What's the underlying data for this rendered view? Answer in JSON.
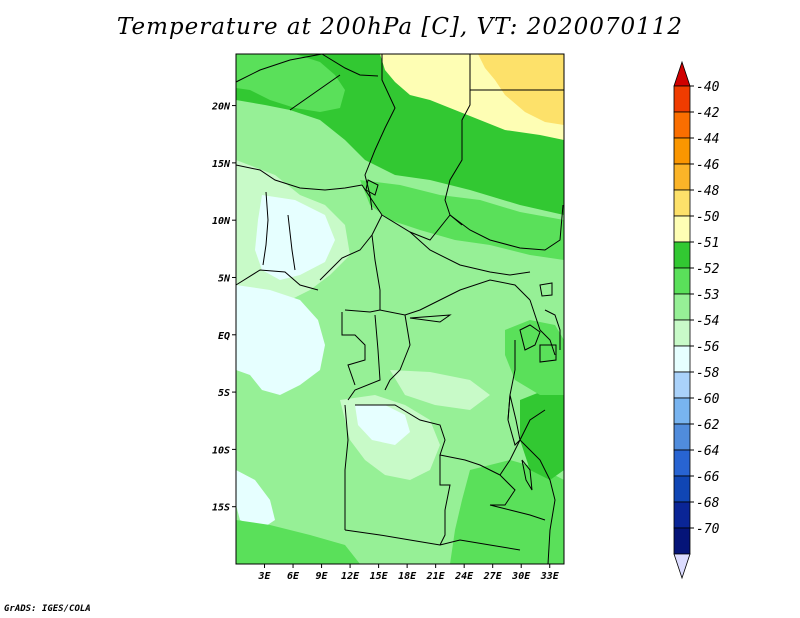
{
  "title": "Temperature at 200hPa [C], VT: 2020070112",
  "credit": "GrADS: IGES/COLA",
  "map": {
    "lon_range": [
      0,
      34.5
    ],
    "lat_range": [
      -20,
      24.5
    ],
    "x_ticks": [
      "3E",
      "6E",
      "9E",
      "12E",
      "15E",
      "18E",
      "21E",
      "24E",
      "27E",
      "30E",
      "33E"
    ],
    "y_ticks": [
      "20N",
      "15N",
      "10N",
      "5N",
      "EQ",
      "5S",
      "10S",
      "15S"
    ]
  },
  "colorbar": {
    "labels": [
      "-40",
      "-42",
      "-44",
      "-46",
      "-48",
      "-50",
      "-51",
      "-52",
      "-53",
      "-54",
      "-56",
      "-58",
      "-60",
      "-62",
      "-64",
      "-66",
      "-68",
      "-70"
    ],
    "colors": [
      "#d00000",
      "#f03c00",
      "#fa6e00",
      "#fa9600",
      "#fbb428",
      "#fde16a",
      "#fefeb4",
      "#32c832",
      "#5ae05a",
      "#96f096",
      "#c8fac8",
      "#e6ffff",
      "#aad2fa",
      "#78b4f0",
      "#508cdc",
      "#2864d2",
      "#1046b4",
      "#0a2596",
      "#051478",
      "#dcdcff"
    ]
  }
}
